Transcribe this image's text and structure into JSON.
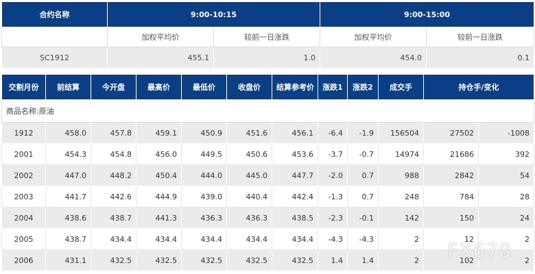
{
  "summary": {
    "col_name": "合约名称",
    "period1": "9:00-10:15",
    "period2": "9:00-15:00",
    "sub_avg": "加权平均价",
    "sub_change": "较前一日涨跌",
    "row": {
      "name": "SC1912",
      "avg1": "455.1",
      "chg1": "1.0",
      "avg2": "454.0",
      "chg2": "0.1"
    }
  },
  "main": {
    "headers": [
      "交割月份",
      "前结算",
      "今开盘",
      "最高价",
      "最低价",
      "收盘价",
      "结算参考价",
      "涨跌1",
      "涨跌2",
      "成交手",
      "持仓手/变化"
    ],
    "category": "商品名称:原油",
    "rows": [
      [
        "1912",
        "458.0",
        "457.8",
        "459.1",
        "450.9",
        "451.6",
        "456.1",
        "-6.4",
        "-1.9",
        "156504",
        "27502",
        "-1008"
      ],
      [
        "2001",
        "454.3",
        "454.8",
        "456.0",
        "449.5",
        "450.6",
        "453.6",
        "-3.7",
        "-0.7",
        "14974",
        "21686",
        "392"
      ],
      [
        "2002",
        "447.0",
        "448.2",
        "450.4",
        "444.0",
        "445.0",
        "447.7",
        "-2.0",
        "0.7",
        "988",
        "2842",
        "54"
      ],
      [
        "2003",
        "441.7",
        "442.6",
        "444.9",
        "439.0",
        "440.4",
        "442.4",
        "-1.3",
        "0.7",
        "248",
        "784",
        "28"
      ],
      [
        "2004",
        "438.6",
        "438.7",
        "441.3",
        "436.3",
        "436.3",
        "438.5",
        "-2.3",
        "-0.1",
        "142",
        "150",
        "24"
      ],
      [
        "2005",
        "438.7",
        "434.4",
        "434.4",
        "434.4",
        "434.4",
        "434.4",
        "-4.3",
        "-4.3",
        "2",
        "12",
        "2"
      ],
      [
        "2006",
        "431.1",
        "432.5",
        "432.5",
        "432.5",
        "432.5",
        "432.5",
        "1.4",
        "1.4",
        "2",
        "102",
        "2"
      ]
    ]
  },
  "watermark": "FX678"
}
